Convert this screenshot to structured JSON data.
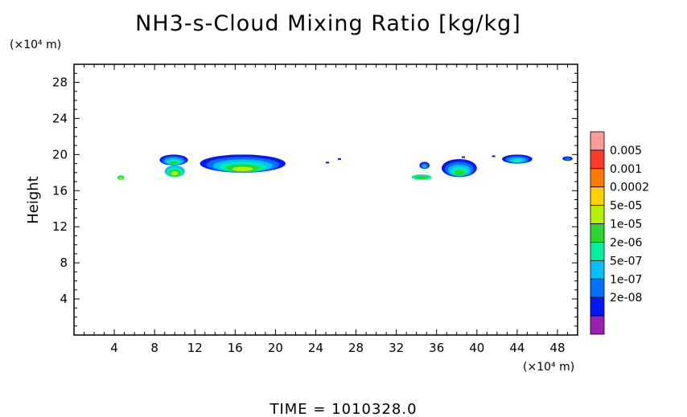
{
  "chart_data": {
    "type": "heatmap",
    "title": "NH3-s-Cloud Mixing Ratio [kg/kg]",
    "xlabel": "",
    "ylabel": "Height",
    "x_unit": "(×10⁴ m)",
    "y_unit": "(×10⁴ m)",
    "xlim": [
      0,
      50
    ],
    "ylim": [
      0,
      30
    ],
    "x_ticks": [
      4,
      8,
      12,
      16,
      20,
      24,
      28,
      32,
      36,
      40,
      44,
      48
    ],
    "y_ticks": [
      4,
      8,
      12,
      16,
      20,
      24,
      28
    ],
    "colorbar": {
      "labels": [
        "0.005",
        "0.001",
        "0.0002",
        "5e-05",
        "1e-05",
        "2e-06",
        "5e-07",
        "1e-07",
        "2e-08"
      ],
      "colors": [
        "#ff9a9a",
        "#ff3a2a",
        "#ff7a00",
        "#ffd000",
        "#b8ef00",
        "#2bd52b",
        "#00f0a0",
        "#00c0ff",
        "#0070ff",
        "#0018ff",
        "#9b1fb0"
      ]
    },
    "cloud_regions": [
      {
        "x": [
          8.5,
          11.3
        ],
        "y": [
          18.8,
          20.0
        ],
        "level": "1e-07 to 1e-05"
      },
      {
        "x": [
          9.0,
          11.0
        ],
        "y": [
          17.5,
          18.8
        ],
        "level": "5e-07 to 5e-05"
      },
      {
        "x": [
          12.5,
          21.0
        ],
        "y": [
          18.0,
          20.0
        ],
        "level": "1e-07 to 5e-05"
      },
      {
        "x": [
          4.3,
          5.0
        ],
        "y": [
          17.2,
          17.7
        ],
        "level": "2e-06 to 5e-05"
      },
      {
        "x": [
          33.5,
          35.5
        ],
        "y": [
          17.2,
          17.8
        ],
        "level": "2e-06 to 1e-05"
      },
      {
        "x": [
          34.3,
          35.3
        ],
        "y": [
          18.4,
          19.2
        ],
        "level": "1e-07 to 5e-07"
      },
      {
        "x": [
          36.5,
          40.0
        ],
        "y": [
          17.5,
          19.5
        ],
        "level": "1e-07 to 1e-05"
      },
      {
        "x": [
          42.5,
          45.5
        ],
        "y": [
          19.0,
          20.0
        ],
        "level": "1e-07 to 2e-06"
      },
      {
        "x": [
          48.5,
          49.5
        ],
        "y": [
          19.3,
          19.8
        ],
        "level": "1e-07"
      }
    ]
  },
  "footer": {
    "time": "TIME =  1010328.0"
  }
}
